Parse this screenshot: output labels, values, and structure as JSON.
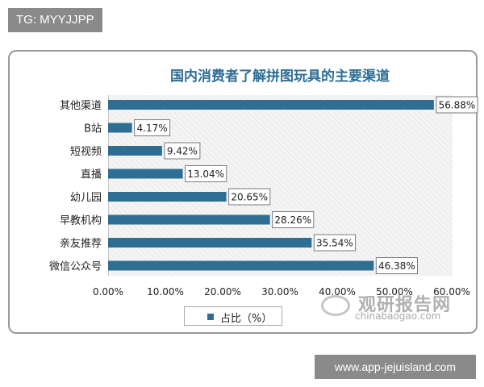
{
  "overlay": {
    "top_tag": "TG: MYYJJPP",
    "bottom_tag": "www.app-jejuisland.com"
  },
  "watermark": {
    "text_cn": "观研报告网",
    "text_en": "chinabaogao.com"
  },
  "colors": {
    "bar": "#2e6e92",
    "title": "#2f6e97"
  },
  "chart_data": {
    "type": "bar",
    "orientation": "horizontal",
    "title": "国内消费者了解拼图玩具的主要渠道",
    "categories": [
      "其他渠道",
      "B站",
      "短视频",
      "直播",
      "幼儿园",
      "早教机构",
      "亲友推荐",
      "微信公众号"
    ],
    "series": [
      {
        "name": "占比（%）",
        "values": [
          56.88,
          4.17,
          9.42,
          13.04,
          20.65,
          28.26,
          35.54,
          46.38
        ],
        "labels": [
          "56.88%",
          "4.17%",
          "9.42%",
          "13.04%",
          "20.65%",
          "28.26%",
          "35.54%",
          "46.38%"
        ]
      }
    ],
    "xlim": [
      0,
      60
    ],
    "xticks": [
      "0.00%",
      "10.00%",
      "20.00%",
      "30.00%",
      "40.00%",
      "50.00%",
      "60.00%"
    ],
    "xlabel": "",
    "ylabel": "",
    "legend_position": "bottom",
    "grid": false
  }
}
